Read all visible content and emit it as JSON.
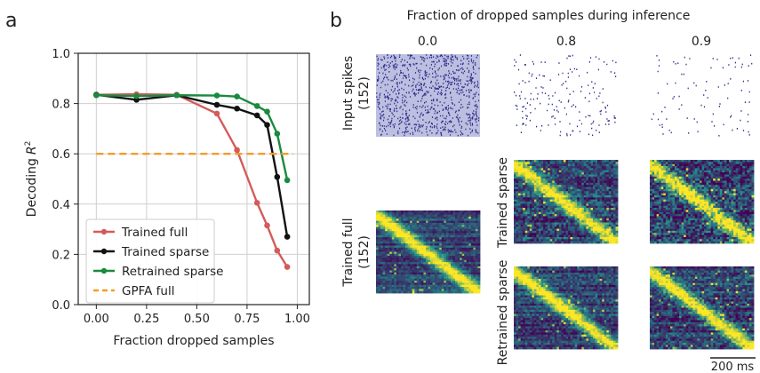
{
  "panels": {
    "a": "a",
    "b": "b"
  },
  "chart_data": {
    "type": "line",
    "xlabel": "Fraction dropped samples",
    "ylabel": "Decoding",
    "ylabel_symbol": "R",
    "ylabel_sup": "2",
    "xlim": [
      -0.09,
      1.06
    ],
    "ylim": [
      0.0,
      1.0
    ],
    "xticks": [
      0.0,
      0.25,
      0.5,
      0.75,
      1.0
    ],
    "xtick_labels": [
      "0.00",
      "0.25",
      "0.50",
      "0.75",
      "1.00"
    ],
    "yticks": [
      0.0,
      0.2,
      0.4,
      0.6,
      0.8,
      1.0
    ],
    "ytick_labels": [
      "0.0",
      "0.2",
      "0.4",
      "0.6",
      "0.8",
      "1.0"
    ],
    "grid": true,
    "legend_position": "lower-left",
    "series": [
      {
        "name": "Trained full",
        "color": "#d45b5b",
        "style": "solid-marker",
        "x": [
          0.0,
          0.2,
          0.4,
          0.6,
          0.7,
          0.8,
          0.85,
          0.9,
          0.95
        ],
        "y": [
          0.835,
          0.837,
          0.835,
          0.76,
          0.615,
          0.405,
          0.315,
          0.215,
          0.15
        ]
      },
      {
        "name": "Trained sparse",
        "color": "#111111",
        "style": "solid-marker",
        "x": [
          0.0,
          0.2,
          0.4,
          0.6,
          0.7,
          0.8,
          0.85,
          0.9,
          0.95
        ],
        "y": [
          0.835,
          0.815,
          0.833,
          0.795,
          0.78,
          0.753,
          0.715,
          0.508,
          0.27
        ]
      },
      {
        "name": "Retrained sparse",
        "color": "#1a8a3e",
        "style": "solid-marker",
        "x": [
          0.0,
          0.2,
          0.4,
          0.6,
          0.7,
          0.8,
          0.85,
          0.9,
          0.95
        ],
        "y": [
          0.833,
          0.83,
          0.833,
          0.832,
          0.828,
          0.79,
          0.768,
          0.68,
          0.495
        ]
      },
      {
        "name": "GPFA full",
        "color": "#f39c2b",
        "style": "dashed",
        "x": [
          0.0,
          0.98
        ],
        "y": [
          0.6,
          0.6
        ]
      }
    ]
  },
  "raster_panel": {
    "title": "Fraction of dropped samples during inference",
    "column_labels": [
      "0.0",
      "0.8",
      "0.9"
    ],
    "row_labels": {
      "input_spikes": "Input spikes",
      "input_count": "(152)",
      "trained_full": "Trained full",
      "trained_full_count": "(152)",
      "trained_sparse": "Trained sparse",
      "retrained_sparse": "Retrained sparse"
    },
    "scale_bar": "200 ms",
    "spike_densities": [
      1.0,
      0.2,
      0.1
    ],
    "colors": {
      "spike_bg": "#bdbfe0",
      "spike_dot": "#2e2e8c",
      "heat_low": "#440154",
      "heat_mid": "#21908d",
      "heat_high": "#fde725"
    }
  }
}
